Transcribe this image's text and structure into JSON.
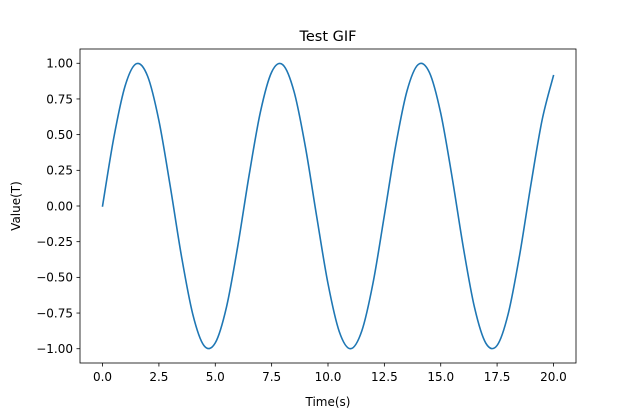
{
  "chart_data": {
    "type": "line",
    "title": "Test GIF",
    "xlabel": "Time(s)",
    "ylabel": "Value(T)",
    "xlim": [
      -1.0,
      21.0
    ],
    "ylim": [
      -1.1,
      1.1
    ],
    "x_ticks": [
      0,
      2.5,
      5,
      7.5,
      10,
      12.5,
      15,
      17.5,
      20
    ],
    "x_tick_labels": [
      "0.0",
      "2.5",
      "5.0",
      "7.5",
      "10.0",
      "12.5",
      "15.0",
      "17.5",
      "20.0"
    ],
    "y_ticks": [
      -1,
      -0.75,
      -0.5,
      -0.25,
      0,
      0.25,
      0.5,
      0.75,
      1
    ],
    "y_tick_labels": [
      "−1.00",
      "−0.75",
      "−0.50",
      "−0.25",
      "0.00",
      "0.25",
      "0.50",
      "0.75",
      "1.00"
    ],
    "grid": false,
    "series": [
      {
        "color": "#1f77b4",
        "x": [
          0,
          0.5,
          1,
          1.5,
          2,
          2.5,
          3,
          3.5,
          4,
          4.5,
          5,
          5.5,
          6,
          6.5,
          7,
          7.5,
          8,
          8.5,
          9,
          9.5,
          10,
          10.5,
          11,
          11.5,
          12,
          12.5,
          13,
          13.5,
          14,
          14.5,
          15,
          15.5,
          16,
          16.5,
          17,
          17.5,
          18,
          18.5,
          19,
          19.5,
          20
        ],
        "y": [
          0,
          0.479,
          0.841,
          0.997,
          0.909,
          0.598,
          0.141,
          -0.351,
          -0.757,
          -0.978,
          -0.959,
          -0.706,
          -0.279,
          0.215,
          0.657,
          0.938,
          0.989,
          0.798,
          0.412,
          -0.075,
          -0.544,
          -0.88,
          -1.0,
          -0.875,
          -0.537,
          -0.066,
          0.42,
          0.804,
          0.991,
          0.935,
          0.65,
          0.206,
          -0.288,
          -0.712,
          -0.961,
          -0.977,
          -0.751,
          -0.343,
          0.15,
          0.605,
          0.913
        ]
      }
    ]
  }
}
